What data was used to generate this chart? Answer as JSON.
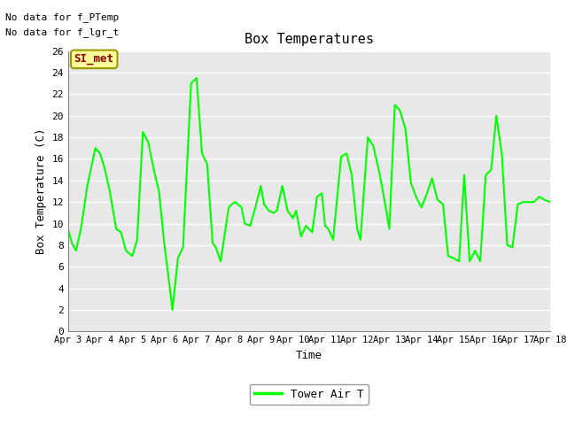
{
  "title": "Box Temperatures",
  "xlabel": "Time",
  "ylabel": "Box Temperature (C)",
  "ylim": [
    0,
    26
  ],
  "plot_bg_color": "#e8e8e8",
  "fig_bg_color": "#ffffff",
  "line_color": "#00ff00",
  "legend_label": "Tower Air T",
  "no_data_text1": "No data for f_PTemp",
  "no_data_text2": "No data for f_lgr_t",
  "si_met_label": "SI_met",
  "x_tick_labels": [
    "Apr 3",
    "Apr 4",
    "Apr 5",
    "Apr 6",
    "Apr 7",
    "Apr 8",
    "Apr 9",
    "Apr 10",
    "Apr 11",
    "Apr 12",
    "Apr 13",
    "Apr 14",
    "Apr 15",
    "Apr 16",
    "Apr 17",
    "Apr 18"
  ],
  "x_values": [
    0,
    0.12,
    0.25,
    0.4,
    0.6,
    0.85,
    1.0,
    1.15,
    1.3,
    1.5,
    1.65,
    1.8,
    2.0,
    2.15,
    2.33,
    2.5,
    2.67,
    2.83,
    3.0,
    3.17,
    3.25,
    3.42,
    3.58,
    3.83,
    4.0,
    4.17,
    4.33,
    4.5,
    4.6,
    4.75,
    5.0,
    5.1,
    5.2,
    5.4,
    5.5,
    5.67,
    5.83,
    6.0,
    6.1,
    6.25,
    6.4,
    6.5,
    6.67,
    6.83,
    7.0,
    7.1,
    7.25,
    7.4,
    7.5,
    7.6,
    7.75,
    7.9,
    8.0,
    8.1,
    8.25,
    8.5,
    8.67,
    8.83,
    9.0,
    9.1,
    9.33,
    9.5,
    9.67,
    9.83,
    10.0,
    10.17,
    10.33,
    10.5,
    10.67,
    10.83,
    11.0,
    11.17,
    11.33,
    11.5,
    11.67,
    11.83,
    12.0,
    12.17,
    12.33,
    12.5,
    12.67,
    12.83,
    13.0,
    13.17,
    13.33,
    13.5,
    13.67,
    13.83,
    14.0,
    14.17,
    14.5,
    14.67,
    14.83,
    15.0
  ],
  "y_values": [
    9.5,
    8.2,
    7.5,
    9.5,
    13.5,
    17.0,
    16.5,
    15.0,
    13.0,
    9.5,
    9.2,
    7.5,
    7.0,
    8.5,
    18.5,
    17.5,
    15.0,
    13.0,
    8.0,
    4.0,
    2.0,
    6.8,
    7.8,
    23.0,
    23.5,
    16.5,
    15.5,
    8.2,
    7.8,
    6.5,
    11.5,
    11.8,
    12.0,
    11.5,
    10.0,
    9.8,
    11.5,
    13.5,
    11.8,
    11.2,
    11.0,
    11.2,
    13.5,
    11.2,
    10.5,
    11.2,
    8.8,
    9.8,
    9.5,
    9.2,
    12.5,
    12.8,
    9.8,
    9.5,
    8.5,
    16.2,
    16.5,
    14.5,
    9.5,
    8.5,
    18.0,
    17.2,
    15.0,
    12.5,
    9.5,
    21.0,
    20.5,
    18.8,
    13.8,
    12.5,
    11.5,
    12.8,
    14.2,
    12.2,
    11.8,
    7.0,
    6.8,
    6.5,
    14.5,
    6.5,
    7.5,
    6.5,
    14.5,
    15.0,
    20.0,
    16.5,
    8.0,
    7.8,
    11.8,
    12.0,
    12.0,
    12.5,
    12.2,
    12.0
  ]
}
